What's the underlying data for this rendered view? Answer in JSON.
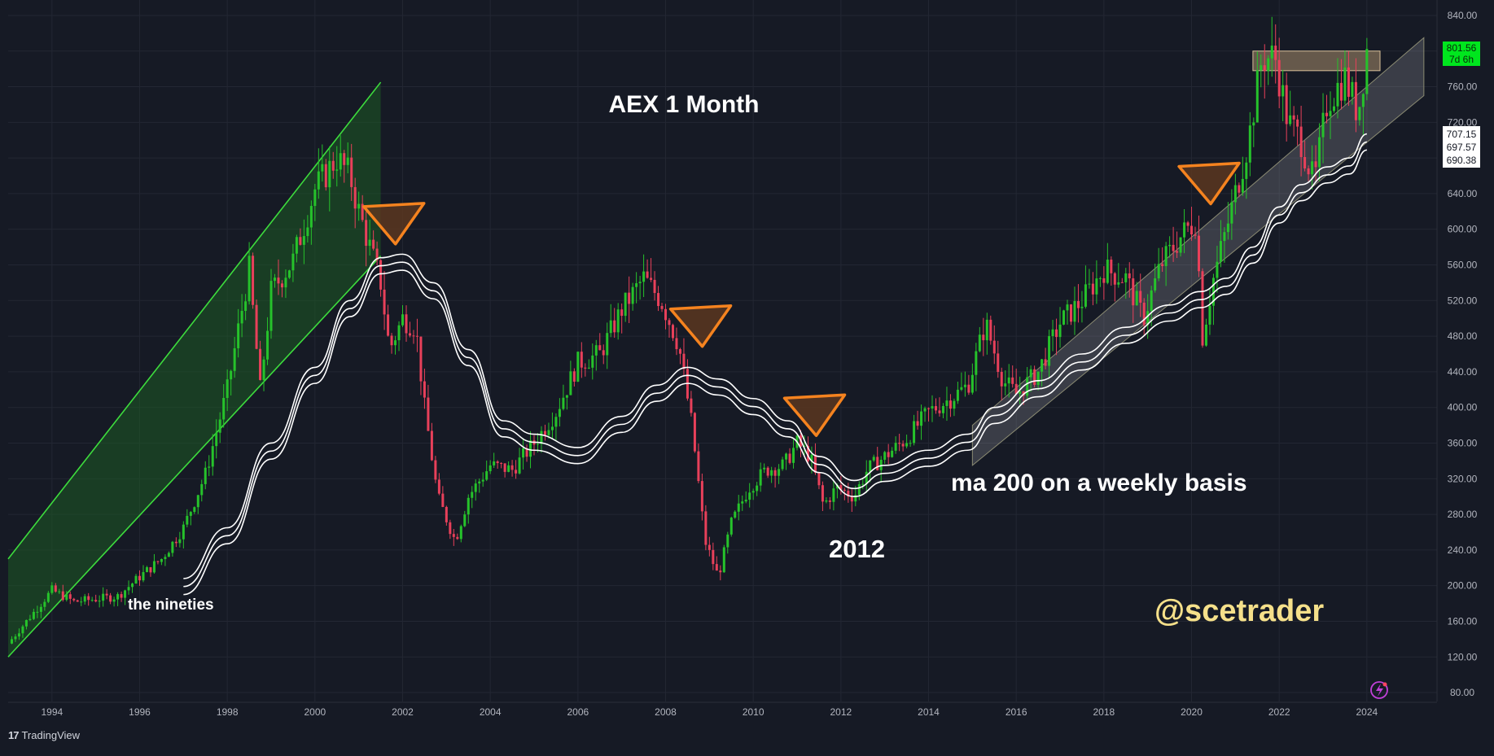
{
  "app": {
    "brand": "TradingView",
    "logo_text": "17"
  },
  "annotations": {
    "title": "AEX 1 Month",
    "nineties": "the nineties",
    "year_2012": "2012",
    "ma_note": "ma 200 on a weekly basis",
    "handle": "@scetrader"
  },
  "price_labels": {
    "last_price": "801.56",
    "countdown": "7d 6h",
    "ma_values": [
      "707.15",
      "697.57",
      "690.38"
    ]
  },
  "colors": {
    "background": "#161a25",
    "grid": "#232733",
    "up_candle": "#26c22b",
    "down_candle": "#e8405a",
    "channel_line": "#3ddc3d",
    "channel_fill": "#1e5b24",
    "ma_line": "#ffffff",
    "triangle_stroke": "#f5831f",
    "triangle_fill": "#5a3720",
    "handle_color": "#f5e08a",
    "last_price_bg": "#00e61e"
  },
  "chart_data": {
    "type": "candlestick",
    "symbol": "AEX",
    "interval": "1 Month",
    "x_ticks": [
      "1994",
      "1996",
      "1998",
      "2000",
      "2002",
      "2004",
      "2006",
      "2008",
      "2010",
      "2012",
      "2014",
      "2016",
      "2018",
      "2020",
      "2022",
      "2024"
    ],
    "y_ticks": [
      80,
      120,
      160,
      200,
      240,
      280,
      320,
      360,
      400,
      440,
      480,
      520,
      560,
      600,
      640,
      680,
      720,
      760,
      800,
      840
    ],
    "y_tick_labels": [
      "80.00",
      "120.00",
      "160.00",
      "200.00",
      "240.00",
      "280.00",
      "320.00",
      "360.00",
      "400.00",
      "440.00",
      "480.00",
      "520.00",
      "560.00",
      "600.00",
      "640.00",
      "680.00",
      "720.00",
      "760.00",
      "800.00",
      "840.00"
    ],
    "xlim": [
      1993.0,
      2025.6
    ],
    "ylim": [
      70,
      850
    ],
    "close_anchors": [
      [
        1993.0,
        135
      ],
      [
        1993.5,
        165
      ],
      [
        1994.0,
        195
      ],
      [
        1994.5,
        182
      ],
      [
        1995.0,
        185
      ],
      [
        1995.5,
        188
      ],
      [
        1996.0,
        210
      ],
      [
        1996.5,
        230
      ],
      [
        1997.0,
        265
      ],
      [
        1997.5,
        325
      ],
      [
        1998.0,
        420
      ],
      [
        1998.5,
        555
      ],
      [
        1998.75,
        420
      ],
      [
        1999.0,
        530
      ],
      [
        1999.5,
        565
      ],
      [
        2000.0,
        645
      ],
      [
        2000.5,
        680
      ],
      [
        2000.8,
        660
      ],
      [
        2001.0,
        620
      ],
      [
        2001.5,
        540
      ],
      [
        2001.7,
        465
      ],
      [
        2002.0,
        500
      ],
      [
        2002.3,
        490
      ],
      [
        2002.5,
        400
      ],
      [
        2002.8,
        300
      ],
      [
        2003.2,
        250
      ],
      [
        2003.5,
        300
      ],
      [
        2004.0,
        335
      ],
      [
        2004.5,
        330
      ],
      [
        2005.0,
        360
      ],
      [
        2005.5,
        395
      ],
      [
        2006.0,
        450
      ],
      [
        2006.5,
        460
      ],
      [
        2007.0,
        510
      ],
      [
        2007.5,
        545
      ],
      [
        2007.9,
        520
      ],
      [
        2008.3,
        470
      ],
      [
        2008.6,
        380
      ],
      [
        2008.9,
        250
      ],
      [
        2009.2,
        210
      ],
      [
        2009.5,
        270
      ],
      [
        2009.9,
        310
      ],
      [
        2010.3,
        330
      ],
      [
        2010.7,
        335
      ],
      [
        2011.0,
        360
      ],
      [
        2011.3,
        345
      ],
      [
        2011.6,
        290
      ],
      [
        2011.9,
        310
      ],
      [
        2012.3,
        300
      ],
      [
        2012.6,
        330
      ],
      [
        2013.0,
        345
      ],
      [
        2013.5,
        365
      ],
      [
        2014.0,
        395
      ],
      [
        2014.5,
        410
      ],
      [
        2014.9,
        425
      ],
      [
        2015.3,
        495
      ],
      [
        2015.7,
        430
      ],
      [
        2016.0,
        415
      ],
      [
        2016.5,
        440
      ],
      [
        2017.0,
        495
      ],
      [
        2017.5,
        520
      ],
      [
        2018.0,
        555
      ],
      [
        2018.5,
        545
      ],
      [
        2018.9,
        500
      ],
      [
        2019.3,
        560
      ],
      [
        2019.8,
        595
      ],
      [
        2020.1,
        610
      ],
      [
        2020.25,
        480
      ],
      [
        2020.5,
        545
      ],
      [
        2020.9,
        620
      ],
      [
        2021.3,
        700
      ],
      [
        2021.6,
        790
      ],
      [
        2021.9,
        795
      ],
      [
        2022.2,
        720
      ],
      [
        2022.5,
        700
      ],
      [
        2022.8,
        650
      ],
      [
        2023.1,
        745
      ],
      [
        2023.5,
        770
      ],
      [
        2023.8,
        730
      ],
      [
        2024.0,
        801.56
      ]
    ],
    "ma_weekly_200": [
      [
        1997.0,
        208
      ],
      [
        1998.0,
        265
      ],
      [
        1999.0,
        360
      ],
      [
        2000.0,
        445
      ],
      [
        2000.8,
        520
      ],
      [
        2001.5,
        568
      ],
      [
        2002.0,
        572
      ],
      [
        2002.7,
        540
      ],
      [
        2003.5,
        465
      ],
      [
        2004.3,
        385
      ],
      [
        2005.0,
        370
      ],
      [
        2006.0,
        355
      ],
      [
        2007.0,
        390
      ],
      [
        2007.8,
        425
      ],
      [
        2008.5,
        445
      ],
      [
        2009.2,
        432
      ],
      [
        2010.0,
        410
      ],
      [
        2010.8,
        385
      ],
      [
        2011.5,
        345
      ],
      [
        2012.3,
        318
      ],
      [
        2013.0,
        335
      ],
      [
        2014.0,
        352
      ],
      [
        2014.9,
        370
      ],
      [
        2015.5,
        400
      ],
      [
        2016.5,
        430
      ],
      [
        2017.5,
        460
      ],
      [
        2018.5,
        490
      ],
      [
        2019.5,
        515
      ],
      [
        2020.2,
        530
      ],
      [
        2020.8,
        545
      ],
      [
        2021.4,
        580
      ],
      [
        2022.0,
        625
      ],
      [
        2022.5,
        650
      ],
      [
        2023.1,
        670
      ],
      [
        2023.6,
        680
      ],
      [
        2024.0,
        707
      ]
    ],
    "ma_values_current": [
      707.15,
      697.57,
      690.38
    ],
    "last_price": 801.56,
    "channels": [
      {
        "name": "nineties",
        "lower": [
          [
            1993.0,
            120
          ],
          [
            2001.5,
            570
          ]
        ],
        "upper": [
          [
            1993.0,
            230
          ],
          [
            2001.5,
            765
          ]
        ]
      },
      {
        "name": "current",
        "lower": [
          [
            2015.0,
            335
          ],
          [
            2025.3,
            750
          ]
        ],
        "upper": [
          [
            2015.0,
            380
          ],
          [
            2025.3,
            815
          ]
        ]
      }
    ],
    "resistance_zone": [
      [
        2021.4,
        778
      ],
      [
        2024.3,
        800
      ]
    ],
    "warning_triangles": [
      [
        2001.8,
        620
      ],
      [
        2008.8,
        505
      ],
      [
        2011.4,
        405
      ],
      [
        2020.4,
        665
      ]
    ],
    "legend": "none",
    "grid": true
  }
}
